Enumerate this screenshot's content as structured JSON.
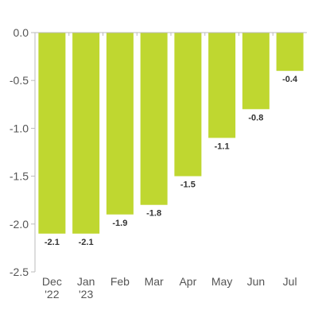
{
  "chart_data": {
    "type": "bar",
    "categories": [
      "Dec '22",
      "Jan '23",
      "Feb",
      "Mar",
      "Apr",
      "May",
      "Jun",
      "Jul"
    ],
    "category_lines": [
      [
        "Dec",
        "'22"
      ],
      [
        "Jan",
        "'23"
      ],
      [
        "Feb"
      ],
      [
        "Mar"
      ],
      [
        "Apr"
      ],
      [
        "May"
      ],
      [
        "Jun"
      ],
      [
        "Jul"
      ]
    ],
    "values": [
      -2.1,
      -2.1,
      -1.9,
      -1.8,
      -1.5,
      -1.1,
      -0.8,
      -0.4
    ],
    "data_labels": [
      "-2.1",
      "-2.1",
      "-1.9",
      "-1.8",
      "-1.5",
      "-1.1",
      "-0.8",
      "-0.4"
    ],
    "yticks": [
      0.0,
      -0.5,
      -1.0,
      -1.5,
      -2.0,
      -2.5
    ],
    "ytick_labels": [
      "0.0",
      "-0.5",
      "-1.0",
      "-1.5",
      "-2.0",
      "-2.5"
    ],
    "ylim": [
      -2.5,
      0.0
    ],
    "grid": false,
    "legend": "none",
    "title": "",
    "xlabel": "",
    "ylabel": "",
    "bar_color": "#bfd730",
    "axis_color": "#bbbbbb"
  }
}
